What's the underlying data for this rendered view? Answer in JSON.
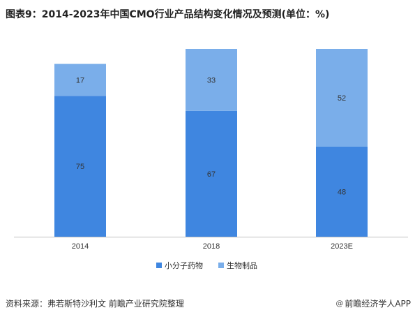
{
  "title": "图表9：2014-2023年中国CMO行业产品结构变化情况及预测(单位：%)",
  "source": "资料来源：弗若斯特沙利文 前瞻产业研究院整理",
  "brand": {
    "icon": "@",
    "text": "前瞻经济学人APP"
  },
  "watermark_text": "前瞻产业研究院",
  "colors": {
    "small_molecule": "#3f86e0",
    "biologics": "#7aaeea",
    "axis": "#bfbfbf",
    "label": "#333333"
  },
  "chart_data": {
    "type": "bar",
    "stacked": true,
    "categories": [
      "2014",
      "2018",
      "2023E"
    ],
    "series": [
      {
        "name": "小分子药物",
        "values": [
          75,
          67,
          48
        ]
      },
      {
        "name": "生物制品",
        "values": [
          17,
          33,
          52
        ]
      }
    ],
    "ylim": [
      0,
      100
    ],
    "grid": false,
    "legend_position": "bottom"
  }
}
